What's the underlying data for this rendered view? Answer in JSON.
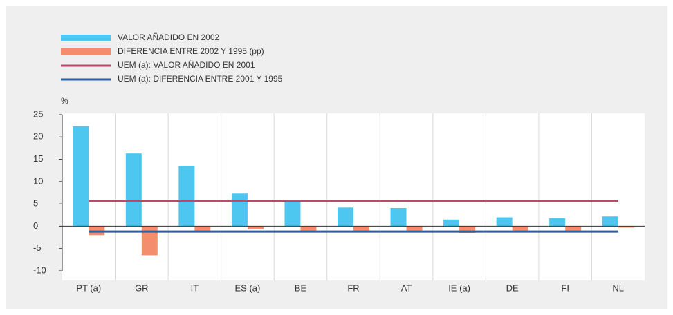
{
  "chart_data": {
    "type": "bar",
    "y_label": "%",
    "categories": [
      "PT (a)",
      "GR",
      "IT",
      "ES (a)",
      "BE",
      "FR",
      "AT",
      "IE (a)",
      "DE",
      "FI",
      "NL"
    ],
    "series": [
      {
        "name": "VALOR AÑADIDO EN 2002",
        "type": "bar",
        "color": "#4dc6f0",
        "values": [
          22.4,
          16.3,
          13.5,
          7.3,
          5.5,
          4.2,
          4.1,
          1.5,
          2.0,
          1.8,
          2.2
        ]
      },
      {
        "name": "DIFERENCIA ENTRE 2002 Y 1995 (pp)",
        "type": "bar",
        "color": "#f48d6e",
        "values": [
          -2.0,
          -6.5,
          -1.0,
          -0.7,
          -1.0,
          -1.0,
          -1.0,
          -1.5,
          -1.0,
          -1.0,
          -0.3
        ]
      },
      {
        "name": "UEM (a): VALOR AÑADIDO EN 2001",
        "type": "line",
        "color": "#b94a6c",
        "values": [
          5.7,
          5.7,
          5.7,
          5.7,
          5.7,
          5.7,
          5.7,
          5.7,
          5.7,
          5.7,
          5.7
        ]
      },
      {
        "name": "UEM (a): DIFERENCIA ENTRE 2001 Y 1995",
        "type": "line",
        "color": "#2e5f9e",
        "values": [
          -1.2,
          -1.2,
          -1.2,
          -1.2,
          -1.2,
          -1.2,
          -1.2,
          -1.2,
          -1.2,
          -1.2,
          -1.2
        ]
      }
    ],
    "ylim": [
      -10,
      25
    ],
    "yticks": [
      -10,
      -5,
      0,
      5,
      10,
      15,
      20,
      25
    ],
    "grid": "x"
  }
}
